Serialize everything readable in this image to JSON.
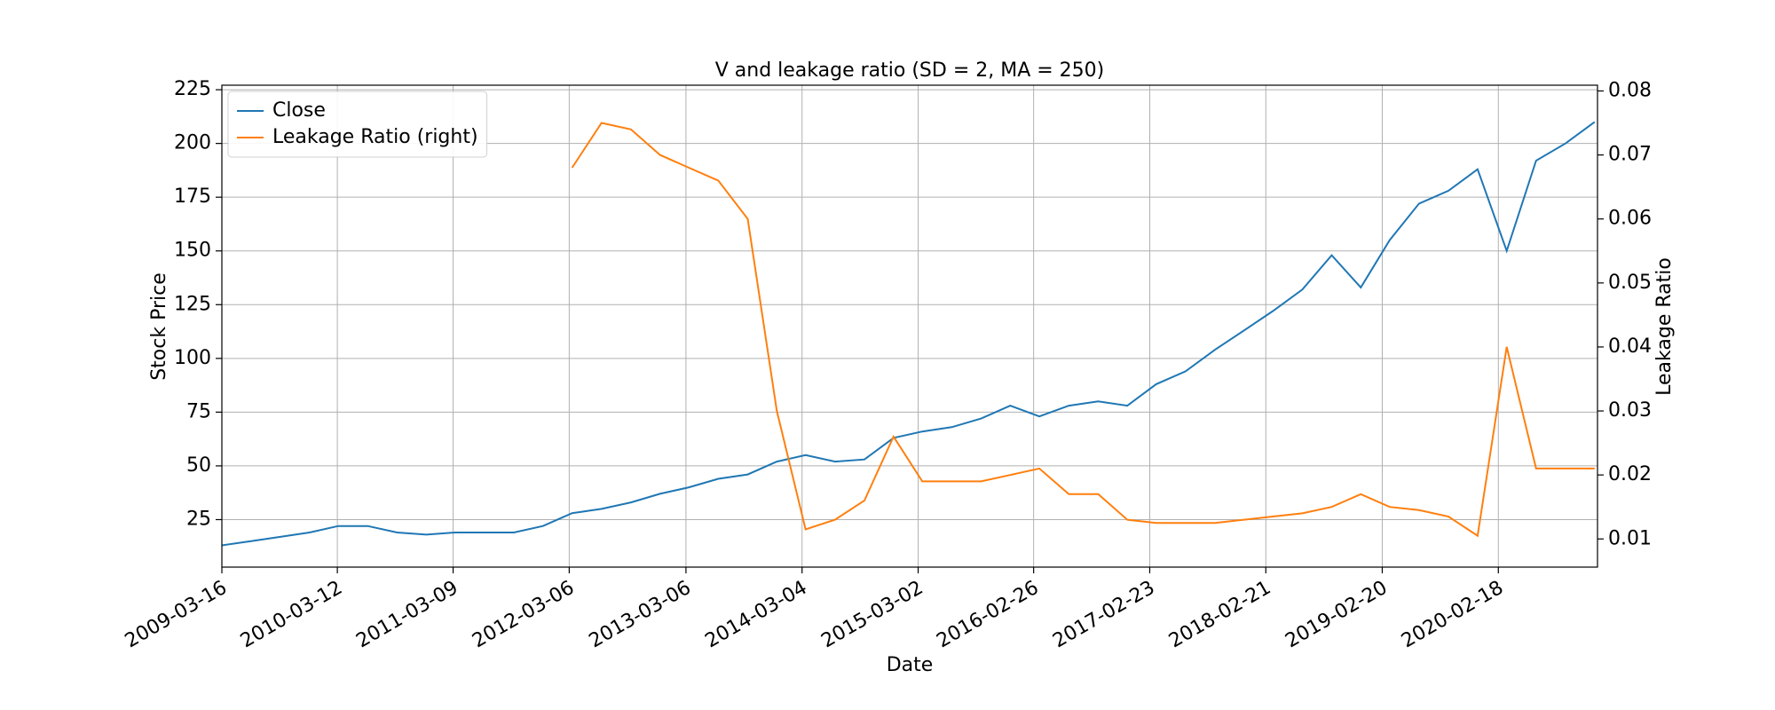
{
  "chart_data": {
    "type": "line",
    "title": "V and leakage ratio (SD = 2, MA = 250)",
    "xlabel": "Date",
    "ylabel": "Stock Price",
    "y2label": "Leakage Ratio",
    "x": [
      "2009-03-16",
      "2009-06-15",
      "2009-09-15",
      "2009-12-15",
      "2010-03-15",
      "2010-06-15",
      "2010-09-15",
      "2010-12-15",
      "2011-03-15",
      "2011-06-15",
      "2011-09-15",
      "2011-12-15",
      "2012-03-15",
      "2012-06-15",
      "2012-09-15",
      "2012-12-15",
      "2013-03-15",
      "2013-06-15",
      "2013-09-15",
      "2013-12-15",
      "2014-03-15",
      "2014-06-15",
      "2014-09-15",
      "2014-12-15",
      "2015-03-15",
      "2015-06-15",
      "2015-09-15",
      "2015-12-15",
      "2016-03-15",
      "2016-06-15",
      "2016-09-15",
      "2016-12-15",
      "2017-03-15",
      "2017-06-15",
      "2017-09-15",
      "2017-12-15",
      "2018-03-15",
      "2018-06-15",
      "2018-09-15",
      "2018-12-15",
      "2019-03-15",
      "2019-06-15",
      "2019-09-15",
      "2019-12-15",
      "2020-03-15",
      "2020-06-15",
      "2020-09-15",
      "2020-12-15"
    ],
    "series": [
      {
        "name": "Close",
        "color": "#1f77b4",
        "axis": "y",
        "values": [
          13,
          15,
          17,
          19,
          22,
          22,
          19,
          18,
          19,
          19,
          19,
          22,
          28,
          30,
          33,
          37,
          40,
          44,
          46,
          52,
          55,
          52,
          53,
          63,
          66,
          68,
          72,
          78,
          73,
          78,
          80,
          78,
          88,
          94,
          104,
          113,
          122,
          132,
          148,
          133,
          155,
          172,
          178,
          188,
          150,
          192,
          200,
          210
        ]
      },
      {
        "name": "Leakage Ratio (right)",
        "color": "#ff7f0e",
        "axis": "y2",
        "values": [
          null,
          null,
          null,
          null,
          null,
          null,
          null,
          null,
          null,
          null,
          null,
          null,
          0.068,
          0.075,
          0.074,
          0.07,
          0.068,
          0.066,
          0.06,
          0.03,
          0.0115,
          0.013,
          0.016,
          0.026,
          0.019,
          0.019,
          0.019,
          0.02,
          0.021,
          0.017,
          0.017,
          0.013,
          0.0125,
          0.0125,
          0.0125,
          0.013,
          0.0135,
          0.014,
          0.015,
          0.017,
          0.015,
          0.0145,
          0.0135,
          0.0105,
          0.04,
          0.021,
          0.021,
          0.021
        ]
      }
    ],
    "xlim": [
      "2009-03-16",
      "2020-12-24"
    ],
    "xticks": [
      "2009-03-16",
      "2010-03-12",
      "2011-03-09",
      "2012-03-06",
      "2013-03-06",
      "2014-03-04",
      "2015-03-02",
      "2016-02-26",
      "2017-02-23",
      "2018-02-21",
      "2019-02-20",
      "2020-02-18"
    ],
    "ylim": [
      2.9,
      227.1
    ],
    "yticks": [
      25,
      50,
      75,
      100,
      125,
      150,
      175,
      200,
      225
    ],
    "y2lim": [
      0.0056,
      0.0809
    ],
    "y2ticks": [
      0.01,
      0.02,
      0.03,
      0.04,
      0.05,
      0.06,
      0.07,
      0.08
    ],
    "grid": true,
    "legend": "upper left"
  }
}
